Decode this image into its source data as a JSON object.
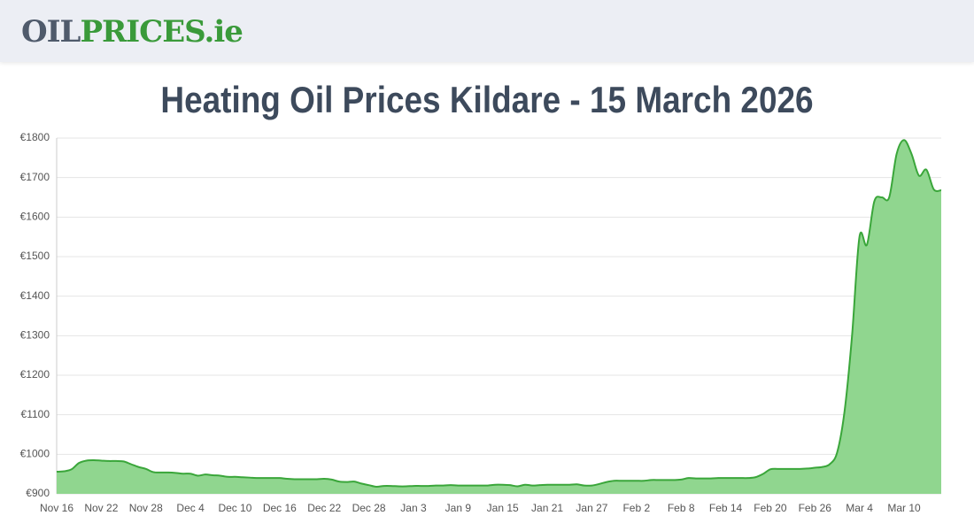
{
  "header": {
    "logo": [
      "OIL",
      "PRICES",
      ".ie"
    ]
  },
  "chart_data": {
    "type": "area",
    "title": "Heating Oil Prices Kildare - 15 March 2026",
    "categories": [
      "Nov 16",
      null,
      null,
      null,
      null,
      null,
      "Nov 22",
      null,
      null,
      null,
      null,
      null,
      "Nov 28",
      null,
      null,
      null,
      null,
      null,
      "Dec 4",
      null,
      null,
      null,
      null,
      null,
      "Dec 10",
      null,
      null,
      null,
      null,
      null,
      "Dec 16",
      null,
      null,
      null,
      null,
      null,
      "Dec 22",
      null,
      null,
      null,
      null,
      null,
      "Dec 28",
      null,
      null,
      null,
      null,
      null,
      "Jan 3",
      null,
      null,
      null,
      null,
      null,
      "Jan 9",
      null,
      null,
      null,
      null,
      null,
      "Jan 15",
      null,
      null,
      null,
      null,
      null,
      "Jan 21",
      null,
      null,
      null,
      null,
      null,
      "Jan 27",
      null,
      null,
      null,
      null,
      null,
      "Feb 2",
      null,
      null,
      null,
      null,
      null,
      "Feb 8",
      null,
      null,
      null,
      null,
      null,
      "Feb 14",
      null,
      null,
      null,
      null,
      null,
      "Feb 20",
      null,
      null,
      null,
      null,
      null,
      "Feb 26",
      null,
      null,
      null,
      null,
      null,
      "Mar 4",
      null,
      null,
      null,
      null,
      null,
      "Mar 10",
      null,
      null,
      null,
      null,
      null
    ],
    "values": [
      956,
      957,
      962,
      978,
      984,
      985,
      984,
      983,
      983,
      982,
      975,
      968,
      963,
      955,
      954,
      954,
      953,
      951,
      951,
      946,
      949,
      947,
      946,
      943,
      943,
      942,
      941,
      940,
      940,
      940,
      940,
      938,
      937,
      937,
      937,
      937,
      938,
      936,
      931,
      930,
      931,
      926,
      922,
      918,
      920,
      920,
      919,
      919,
      920,
      920,
      920,
      921,
      921,
      922,
      921,
      921,
      921,
      921,
      921,
      923,
      923,
      922,
      919,
      923,
      921,
      922,
      923,
      923,
      923,
      923,
      924,
      921,
      921,
      925,
      930,
      933,
      933,
      933,
      933,
      933,
      935,
      935,
      935,
      935,
      936,
      940,
      939,
      939,
      939,
      940,
      940,
      940,
      940,
      940,
      942,
      950,
      962,
      963,
      963,
      963,
      963,
      964,
      966,
      968,
      975,
      1005,
      1110,
      1300,
      1550,
      1530,
      1640,
      1650,
      1650,
      1760,
      1795,
      1760,
      1705,
      1720,
      1670,
      1668
    ],
    "color": "#3aa63a",
    "fill": "#90d68f",
    "ylim": [
      900,
      1800
    ],
    "yticks": [
      {
        "value": 900,
        "label": "€900"
      },
      {
        "value": 1000,
        "label": "€1000"
      },
      {
        "value": 1100,
        "label": "€1100"
      },
      {
        "value": 1200,
        "label": "€1200"
      },
      {
        "value": 1300,
        "label": "€1300"
      },
      {
        "value": 1400,
        "label": "€1400"
      },
      {
        "value": 1500,
        "label": "€1500"
      },
      {
        "value": 1600,
        "label": "€1600"
      },
      {
        "value": 1700,
        "label": "€1700"
      },
      {
        "value": 1800,
        "label": "€1800"
      }
    ],
    "grid": true
  }
}
